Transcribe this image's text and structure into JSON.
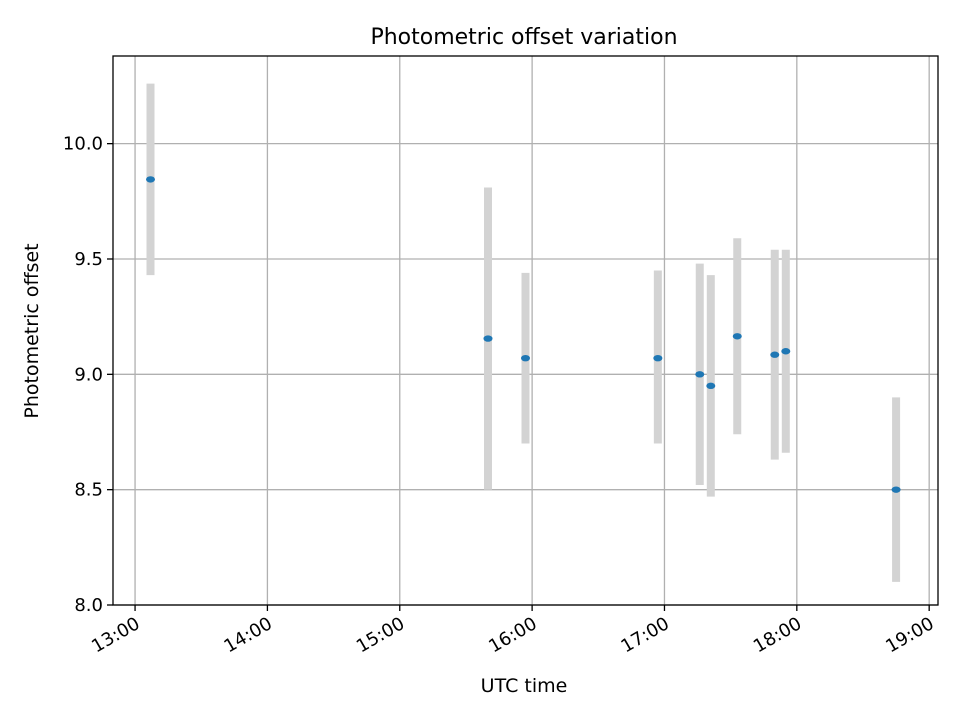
{
  "chart_data": {
    "type": "scatter",
    "title": "Photometric offset variation",
    "xlabel": "UTC time",
    "ylabel": "Photometric offset",
    "x_is_time": true,
    "xlim": [
      "12:50",
      "19:04"
    ],
    "ylim": [
      8.0,
      10.38
    ],
    "xticks": [
      "13:00",
      "14:00",
      "15:00",
      "16:00",
      "17:00",
      "18:00",
      "19:00"
    ],
    "yticks": [
      "8.0",
      "8.5",
      "9.0",
      "9.5",
      "10.0"
    ],
    "grid": true,
    "colors": {
      "point": "#1f77b4",
      "errorbar": "#d3d3d3",
      "grid": "#b0b0b0"
    },
    "points": [
      {
        "x": "13:07",
        "y": 9.845,
        "ylow": 9.43,
        "yhigh": 10.26
      },
      {
        "x": "15:40",
        "y": 9.155,
        "ylow": 8.5,
        "yhigh": 9.81
      },
      {
        "x": "15:57",
        "y": 9.07,
        "ylow": 8.7,
        "yhigh": 9.44
      },
      {
        "x": "16:57",
        "y": 9.07,
        "ylow": 8.7,
        "yhigh": 9.45
      },
      {
        "x": "17:16",
        "y": 9.0,
        "ylow": 8.52,
        "yhigh": 9.48
      },
      {
        "x": "17:21",
        "y": 8.95,
        "ylow": 8.47,
        "yhigh": 9.43
      },
      {
        "x": "17:33",
        "y": 9.165,
        "ylow": 8.74,
        "yhigh": 9.59
      },
      {
        "x": "17:50",
        "y": 9.085,
        "ylow": 8.63,
        "yhigh": 9.54
      },
      {
        "x": "17:55",
        "y": 9.1,
        "ylow": 8.66,
        "yhigh": 9.54
      },
      {
        "x": "18:45",
        "y": 8.5,
        "ylow": 8.1,
        "yhigh": 8.9
      }
    ]
  }
}
